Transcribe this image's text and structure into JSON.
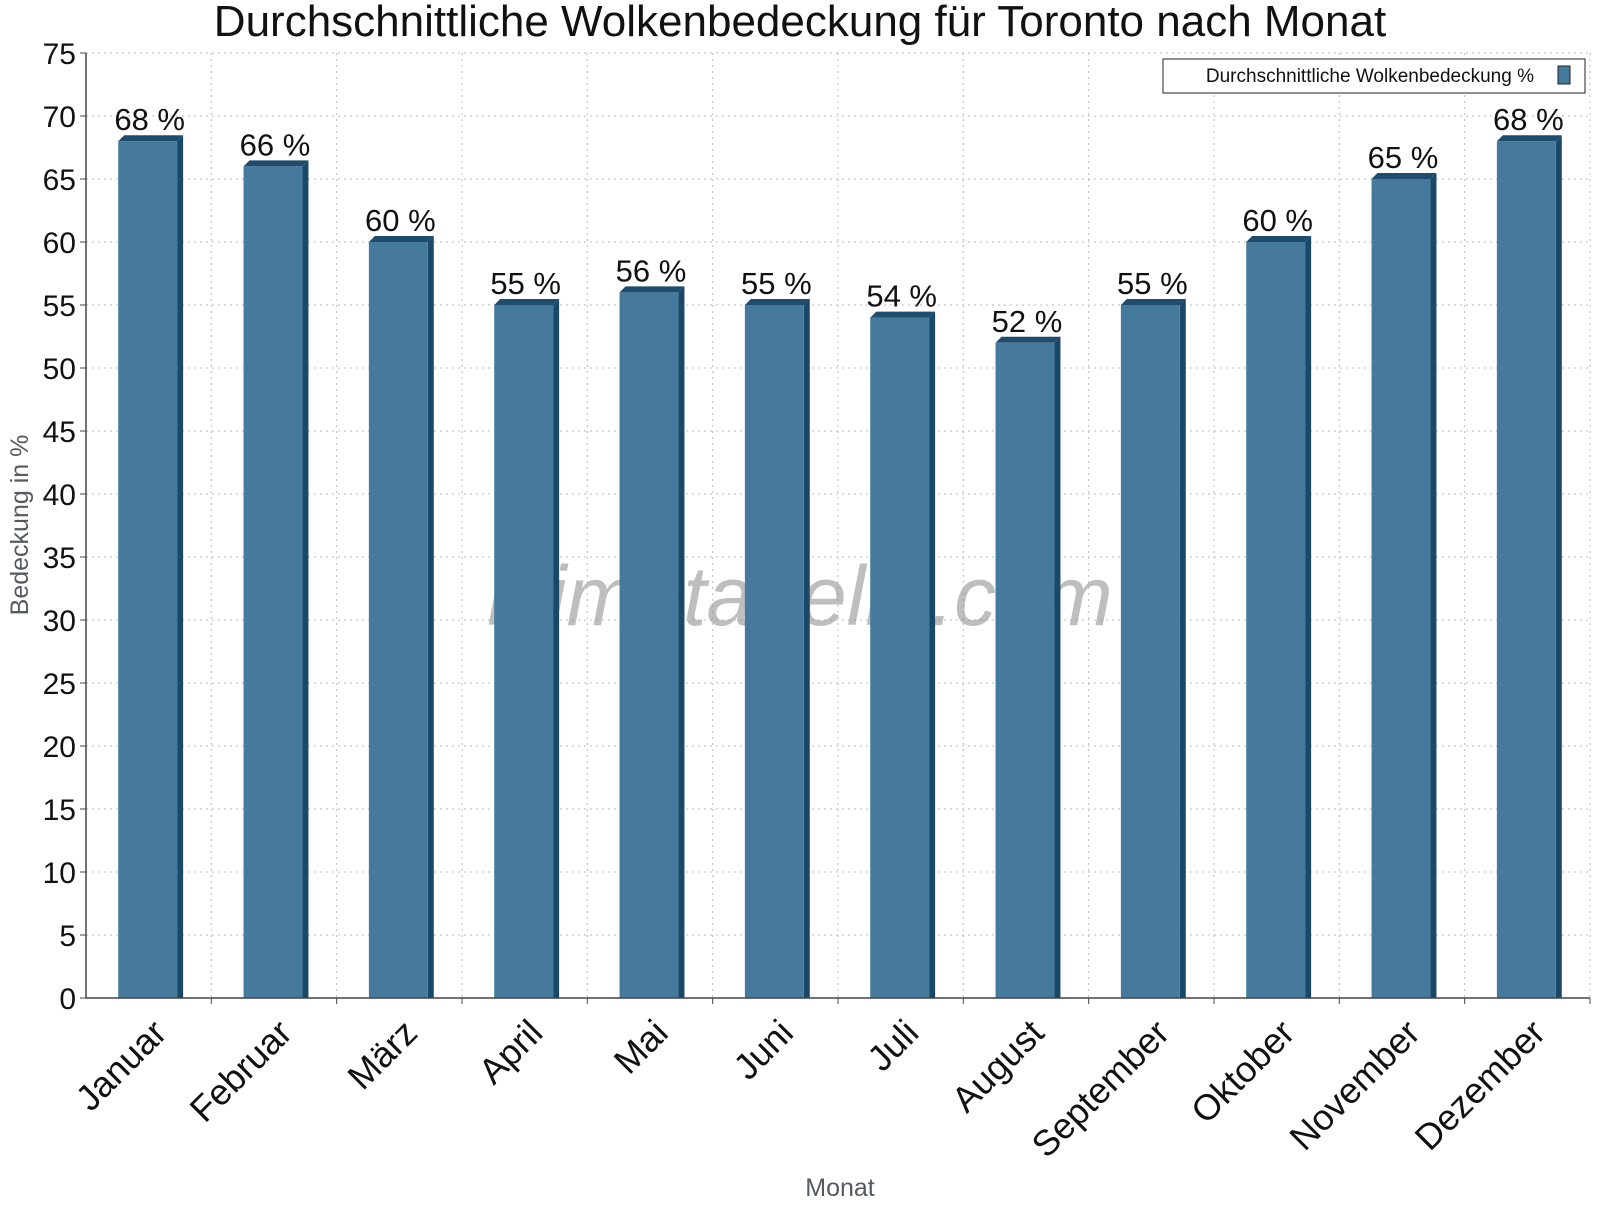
{
  "watermark": "klimatabelle.com",
  "colors": {
    "bar_front": "#467a9d",
    "bar_top": "#1f4c6c",
    "bar_side": "#1a4868",
    "grid": "#bbbbbb",
    "axis": "#444444"
  },
  "chart_data": {
    "type": "bar",
    "title": "Durchschnittliche Wolkenbedeckung für Toronto nach Monat",
    "xlabel": "Monat",
    "ylabel": "Bedeckung in %",
    "categories": [
      "Januar",
      "Februar",
      "März",
      "April",
      "Mai",
      "Juni",
      "Juli",
      "August",
      "September",
      "Oktober",
      "November",
      "Dezember"
    ],
    "series": [
      {
        "name": "Durchschnittliche Wolkenbedeckung %",
        "values": [
          68,
          66,
          60,
          55,
          56,
          55,
          54,
          52,
          55,
          60,
          65,
          68
        ],
        "labels": [
          "68 %",
          "66 %",
          "60 %",
          "55 %",
          "56 %",
          "55 %",
          "54 %",
          "52 %",
          "55 %",
          "60 %",
          "65 %",
          "68 %"
        ]
      }
    ],
    "ylim": [
      0,
      75
    ],
    "yticks": [
      0,
      5,
      10,
      15,
      20,
      25,
      30,
      35,
      40,
      45,
      50,
      55,
      60,
      65,
      70,
      75
    ],
    "grid": true,
    "legend": "top-right"
  }
}
